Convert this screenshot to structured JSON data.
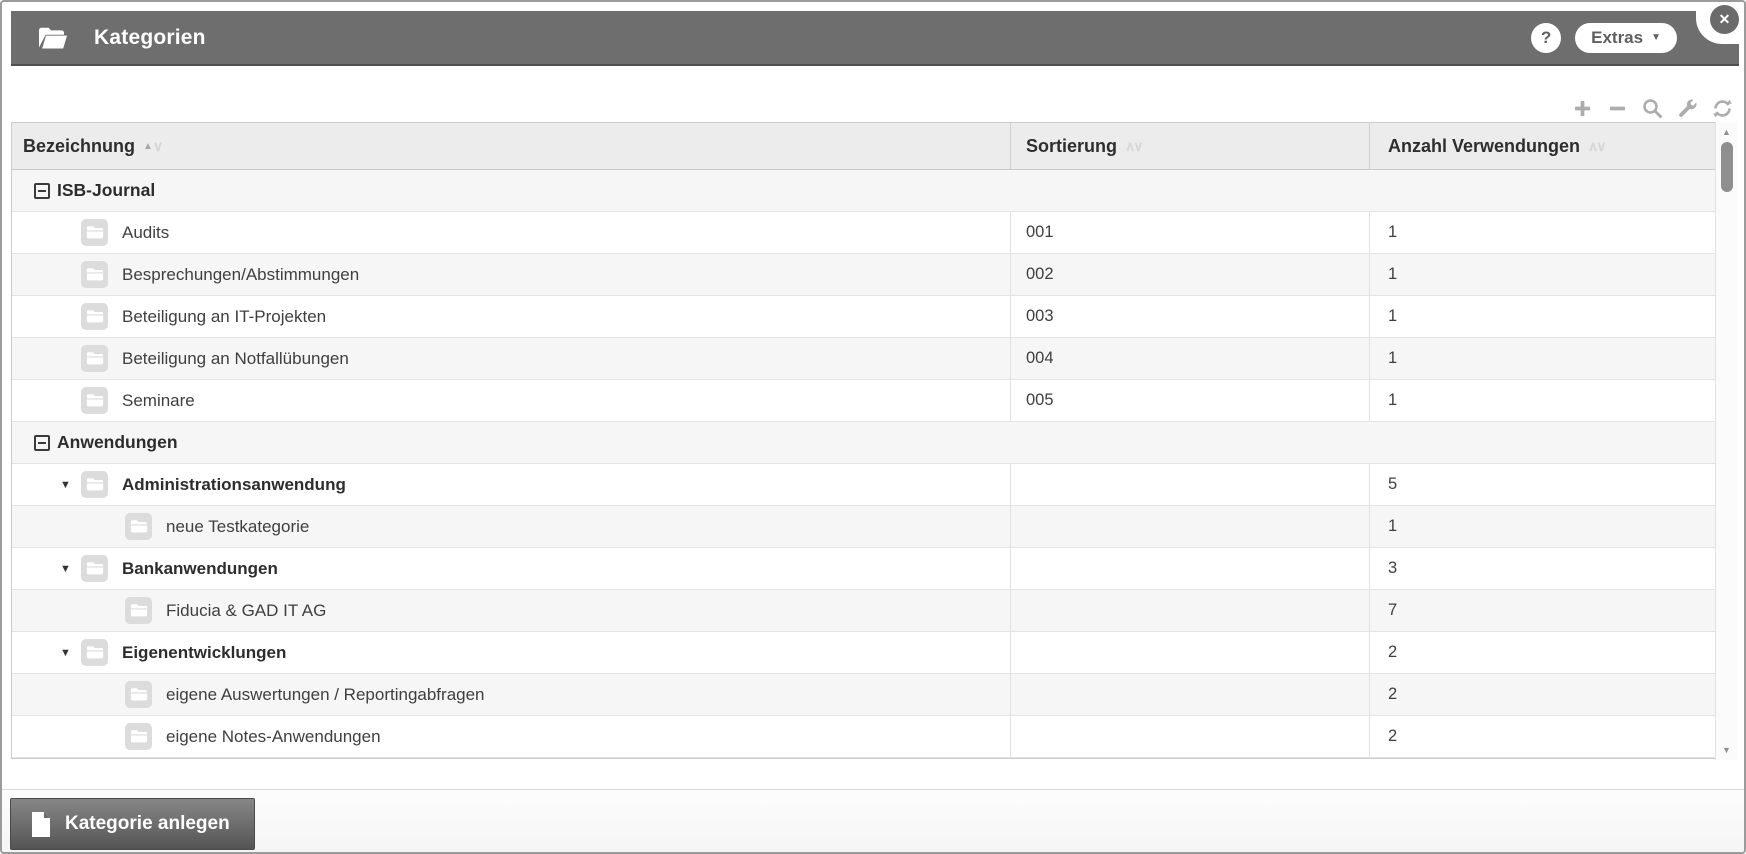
{
  "window": {
    "title": "Kategorien",
    "title_icon": "open-folder-icon",
    "help_label": "?",
    "extras_label": "Extras",
    "close_label": "✕"
  },
  "toolbar": {
    "icons": [
      "add-icon",
      "remove-icon",
      "search-icon",
      "wrench-icon",
      "refresh-icon"
    ]
  },
  "table": {
    "columns": [
      {
        "label": "Bezeichnung",
        "sort": "asc"
      },
      {
        "label": "Sortierung",
        "sort": "none"
      },
      {
        "label": "Anzahl Verwendungen",
        "sort": "none"
      }
    ],
    "rows": [
      {
        "type": "group",
        "label": "ISB-Journal"
      },
      {
        "type": "item",
        "level": 1,
        "bold": false,
        "expanded": false,
        "label": "Audits",
        "sortierung": "001",
        "anzahl": "1"
      },
      {
        "type": "item",
        "level": 1,
        "bold": false,
        "expanded": false,
        "label": "Besprechungen/Abstimmungen",
        "sortierung": "002",
        "anzahl": "1"
      },
      {
        "type": "item",
        "level": 1,
        "bold": false,
        "expanded": false,
        "label": "Beteiligung an IT-Projekten",
        "sortierung": "003",
        "anzahl": "1"
      },
      {
        "type": "item",
        "level": 1,
        "bold": false,
        "expanded": false,
        "label": "Beteiligung an Notfallübungen",
        "sortierung": "004",
        "anzahl": "1"
      },
      {
        "type": "item",
        "level": 1,
        "bold": false,
        "expanded": false,
        "label": "Seminare",
        "sortierung": "005",
        "anzahl": "1"
      },
      {
        "type": "group",
        "label": "Anwendungen"
      },
      {
        "type": "item",
        "level": 1,
        "bold": true,
        "expanded": true,
        "label": "Administrationsanwendung",
        "sortierung": "",
        "anzahl": "5"
      },
      {
        "type": "item",
        "level": 2,
        "bold": false,
        "expanded": false,
        "label": "neue Testkategorie",
        "sortierung": "",
        "anzahl": "1"
      },
      {
        "type": "item",
        "level": 1,
        "bold": true,
        "expanded": true,
        "label": "Bankanwendungen",
        "sortierung": "",
        "anzahl": "3"
      },
      {
        "type": "item",
        "level": 2,
        "bold": false,
        "expanded": false,
        "label": "Fiducia & GAD IT AG",
        "sortierung": "",
        "anzahl": "7"
      },
      {
        "type": "item",
        "level": 1,
        "bold": true,
        "expanded": true,
        "label": "Eigenentwicklungen",
        "sortierung": "",
        "anzahl": "2"
      },
      {
        "type": "item",
        "level": 2,
        "bold": false,
        "expanded": false,
        "label": "eigene Auswertungen / Reportingabfragen",
        "sortierung": "",
        "anzahl": "2"
      },
      {
        "type": "item",
        "level": 2,
        "bold": false,
        "expanded": false,
        "label": "eigene Notes-Anwendungen",
        "sortierung": "",
        "anzahl": "2"
      }
    ]
  },
  "footer": {
    "create_button_label": "Kategorie anlegen"
  },
  "colors": {
    "header_bg": "#6e6e6e",
    "header_border": "#4f4f4f",
    "table_header_bg": "#ececec",
    "row_alt_bg": "#f6f6f6",
    "row_border": "#e3e3e3",
    "toolbar_icon": "#adadad",
    "button_gradient_top": "#878787",
    "button_gradient_bottom": "#545454",
    "folder_tile": "#dcdcdc"
  }
}
